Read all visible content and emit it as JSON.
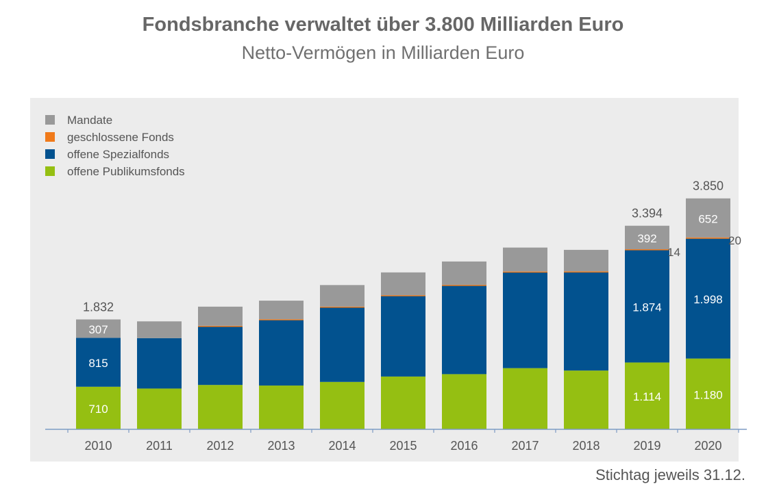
{
  "title": "Fondsbranche verwaltet über 3.800 Milliarden Euro",
  "subtitle": "Netto-Vermögen in Milliarden Euro",
  "footnote": "Stichtag jeweils 31.12.",
  "colors": {
    "mandate": "#999999",
    "geschlossene": "#f07a1a",
    "spezial": "#02528f",
    "publikum": "#95bf12",
    "panel": "#ececec",
    "axis": "#7d9bc4"
  },
  "chart_data": {
    "type": "bar",
    "stacked": true,
    "categories": [
      "2010",
      "2011",
      "2012",
      "2013",
      "2014",
      "2015",
      "2016",
      "2017",
      "2018",
      "2019",
      "2020"
    ],
    "series": [
      {
        "name": "offene Publikumsfonds",
        "color": "#95bf12",
        "values": [
          710,
          680,
          740,
          730,
          790,
          880,
          920,
          1020,
          980,
          1114,
          1180
        ]
      },
      {
        "name": "offene Spezialfonds",
        "color": "#02528f",
        "values": [
          815,
          840,
          980,
          1100,
          1250,
          1350,
          1480,
          1600,
          1640,
          1874,
          1998
        ]
      },
      {
        "name": "geschlossene Fonds",
        "color": "#f07a1a",
        "values": [
          0,
          0,
          5,
          5,
          5,
          6,
          8,
          10,
          12,
          14,
          20
        ]
      },
      {
        "name": "Mandate",
        "color": "#999999",
        "values": [
          307,
          280,
          320,
          310,
          360,
          380,
          390,
          400,
          360,
          392,
          652
        ]
      }
    ],
    "legend": [
      "Mandate",
      "geschlossene Fonds",
      "offene Spezialfonds",
      "offene Publikumsfonds"
    ],
    "totals": [
      {
        "category": "2010",
        "label": "1.832"
      },
      {
        "category": "2019",
        "label": "3.394"
      },
      {
        "category": "2020",
        "label": "3.850"
      }
    ],
    "data_labels": [
      {
        "category": "2010",
        "series": "offene Publikumsfonds",
        "label": "710"
      },
      {
        "category": "2010",
        "series": "offene Spezialfonds",
        "label": "815"
      },
      {
        "category": "2010",
        "series": "Mandate",
        "label": "307"
      },
      {
        "category": "2019",
        "series": "offene Publikumsfonds",
        "label": "1.114"
      },
      {
        "category": "2019",
        "series": "offene Spezialfonds",
        "label": "1.874"
      },
      {
        "category": "2019",
        "series": "Mandate",
        "label": "392"
      },
      {
        "category": "2019",
        "series": "geschlossene Fonds",
        "label": "14"
      },
      {
        "category": "2020",
        "series": "offene Publikumsfonds",
        "label": "1.180"
      },
      {
        "category": "2020",
        "series": "offene Spezialfonds",
        "label": "1.998"
      },
      {
        "category": "2020",
        "series": "Mandate",
        "label": "652"
      },
      {
        "category": "2020",
        "series": "geschlossene Fonds",
        "label": "20"
      }
    ],
    "ylim": [
      0,
      4300
    ],
    "legend_position": "top-left",
    "grid": false
  }
}
